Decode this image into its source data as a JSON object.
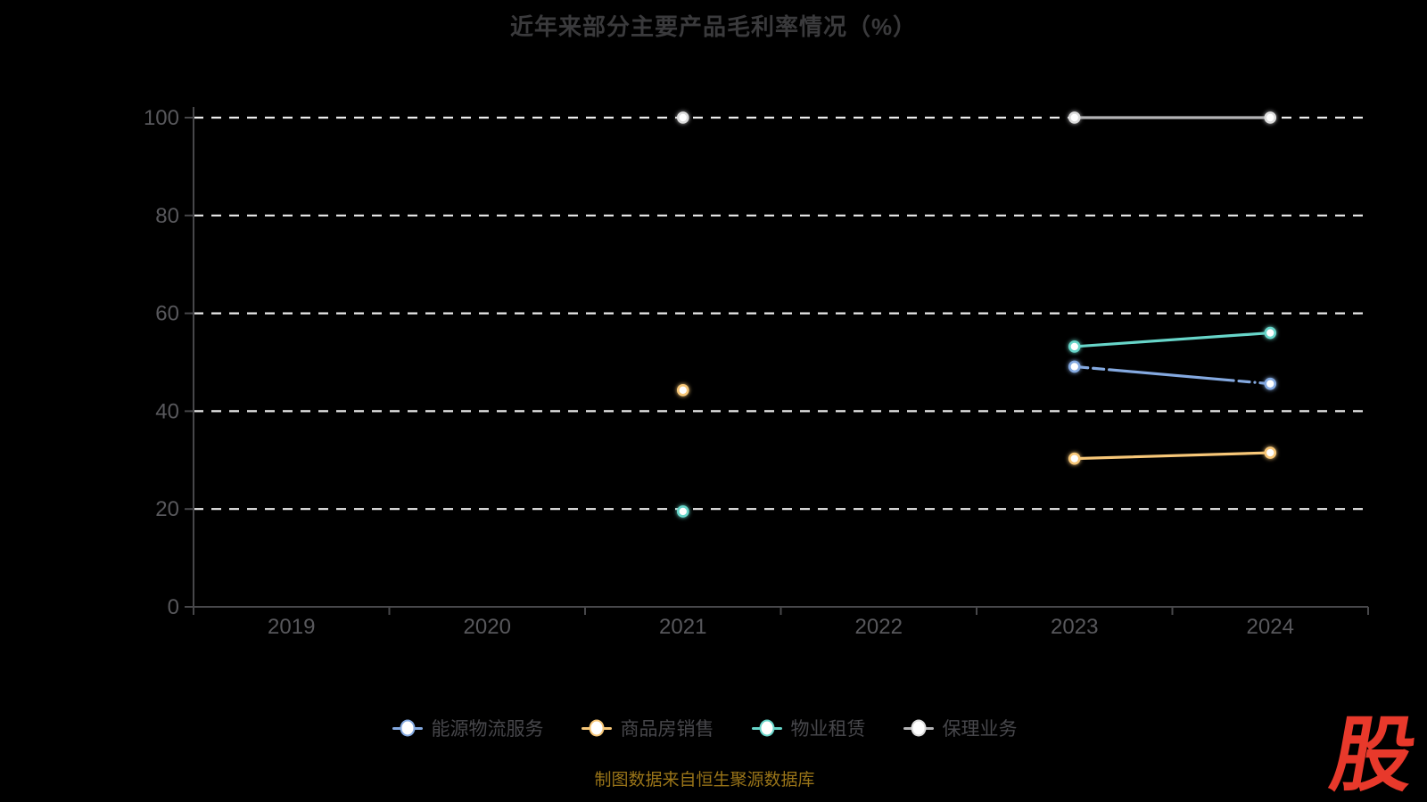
{
  "title": "近年来部分主要产品毛利率情况（%）",
  "source_note": "制图数据来自恒生聚源数据库",
  "logo_text": "股",
  "colors": {
    "background": "#000000",
    "title_text": "#3a3a3c",
    "axis_line": "#47474a",
    "axis_text": "#58585c",
    "gridline": "#ececec",
    "legend_text": "#47474b",
    "note_text": "#997418",
    "logo_red": "#e8392b",
    "point_fill": "#ffffff"
  },
  "chart_data": {
    "type": "line",
    "title": "近年来部分主要产品毛利率情况（%）",
    "categories": [
      "2019",
      "2020",
      "2021",
      "2022",
      "2023",
      "2024"
    ],
    "series": [
      {
        "name": "能源物流服务",
        "color": "#84a9e0",
        "values": [
          null,
          null,
          null,
          null,
          49.1,
          45.6
        ],
        "line_style": "dash-ends"
      },
      {
        "name": "商品房销售",
        "color": "#f7c778",
        "values": [
          null,
          null,
          44.3,
          null,
          30.3,
          31.5
        ],
        "line_style": "solid"
      },
      {
        "name": "物业租赁",
        "color": "#67d5c9",
        "values": [
          null,
          null,
          19.5,
          null,
          53.2,
          56.0
        ],
        "line_style": "solid"
      },
      {
        "name": "保理业务",
        "color": "#b4b4b6",
        "values": [
          null,
          null,
          100.0,
          null,
          100.0,
          100.0
        ],
        "line_style": "solid",
        "point_stroke": "#dcdcdc"
      }
    ],
    "xlabel": "",
    "ylabel": "",
    "ylim": [
      0,
      100
    ],
    "yticks": [
      0,
      20,
      40,
      60,
      80,
      100
    ],
    "grid": "horizontal-dashed",
    "legend_position": "bottom"
  }
}
